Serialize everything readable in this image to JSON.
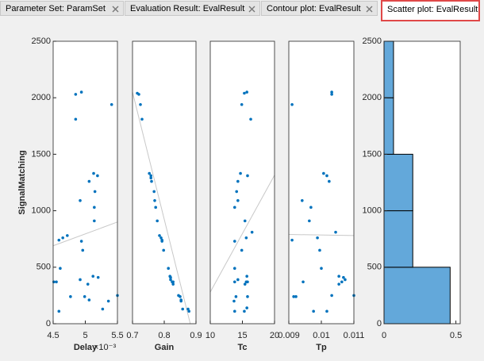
{
  "tabs": [
    "Parameter Set:  ParamSet",
    "Evaluation Result:  EvalResult",
    "Contour plot:  EvalResult",
    "Scatter plot:  EvalResult"
  ],
  "chart_data": [
    {
      "type": "scatter",
      "xlabel": "Delay",
      "x_multiplier": "×10⁻³",
      "ylabel": "SignalMatching",
      "color": "#0072bd",
      "x": [
        4.85,
        4.94,
        4.85,
        5.41,
        5.13,
        5.19,
        5.06,
        5.15,
        4.92,
        5.14,
        5.14,
        4.72,
        4.65,
        4.59,
        4.94,
        4.96,
        4.51,
        4.55,
        4.61,
        4.92,
        5.12,
        5.2,
        5.04,
        4.77,
        4.99,
        5.36,
        5.27,
        5.5,
        4.59,
        5.06
      ],
      "y": [
        2030,
        2050,
        1810,
        1940,
        1330,
        1310,
        1260,
        1170,
        1090,
        1030,
        910,
        780,
        760,
        740,
        730,
        650,
        370,
        370,
        490,
        390,
        420,
        410,
        350,
        240,
        240,
        200,
        130,
        250,
        110,
        210
      ],
      "fit_line": {
        "x": [
          4.5,
          5.5
        ],
        "y": [
          690,
          900
        ],
        "color": "#c8c8c8"
      },
      "xlim": [
        4.5,
        5.5
      ],
      "xticks": [
        4.5,
        5,
        5.5
      ],
      "ylim": [
        0,
        2500
      ],
      "yticks": [
        0,
        500,
        1000,
        1500,
        2000,
        2500
      ]
    },
    {
      "type": "scatter",
      "xlabel": "Gain",
      "color": "#0072bd",
      "x": [
        0.715,
        0.72,
        0.725,
        0.73,
        0.753,
        0.758,
        0.758,
        0.76,
        0.768,
        0.77,
        0.773,
        0.778,
        0.785,
        0.79,
        0.793,
        0.793,
        0.798,
        0.813,
        0.818,
        0.82,
        0.82,
        0.825,
        0.828,
        0.828,
        0.845,
        0.85,
        0.853,
        0.853,
        0.858,
        0.875,
        0.878
      ],
      "y": [
        2040,
        2030,
        1940,
        1810,
        1330,
        1310,
        1290,
        1260,
        1170,
        1090,
        1030,
        910,
        780,
        760,
        740,
        730,
        650,
        490,
        420,
        410,
        390,
        370,
        370,
        350,
        250,
        240,
        210,
        200,
        130,
        130,
        110
      ],
      "fit_line": {
        "x": [
          0.7,
          0.882
        ],
        "y": [
          2050,
          0
        ],
        "color": "#c8c8c8"
      },
      "xlim": [
        0.7,
        0.9
      ],
      "xticks": [
        0.7,
        0.8,
        0.9
      ],
      "ylim": [
        0,
        2500
      ]
    },
    {
      "type": "scatter",
      "xlabel": "Tc",
      "color": "#0072bd",
      "x": [
        15.3,
        15.7,
        14.9,
        16.3,
        14.7,
        15.8,
        14.3,
        14.1,
        14.3,
        13.8,
        15.4,
        16.5,
        15.6,
        13.8,
        14.9,
        13.8,
        13.8,
        15.6,
        15.8,
        15.7,
        14.3,
        15.4,
        14.0,
        15.8,
        13.7,
        15.7,
        13.8,
        15.3
      ],
      "y": [
        2040,
        2050,
        1940,
        1810,
        1330,
        1310,
        1260,
        1170,
        1090,
        1030,
        910,
        810,
        760,
        730,
        650,
        490,
        370,
        370,
        370,
        420,
        390,
        350,
        240,
        240,
        200,
        140,
        110,
        110
      ],
      "fit_line": {
        "x": [
          10,
          20
        ],
        "y": [
          280,
          1315
        ],
        "color": "#c8c8c8"
      },
      "xlim": [
        10,
        20
      ],
      "xticks": [
        10,
        15,
        20
      ],
      "ylim": [
        0,
        2500
      ]
    },
    {
      "type": "scatter",
      "xlabel": "Tp",
      "color": "#0072bd",
      "x": [
        0.0091,
        0.01032,
        0.01032,
        0.01007,
        0.01017,
        0.01024,
        0.00941,
        0.00968,
        0.00963,
        0.01044,
        0.0091,
        0.00988,
        0.00995,
        0.00944,
        0.01,
        0.01054,
        0.01063,
        0.01073,
        0.01054,
        0.01032,
        0.00915,
        0.00922,
        0.01017,
        0.00976,
        0.011,
        0.01068
      ],
      "y": [
        1940,
        2050,
        2030,
        1330,
        1310,
        1260,
        1090,
        1030,
        910,
        810,
        740,
        760,
        650,
        370,
        490,
        420,
        370,
        390,
        350,
        250,
        240,
        240,
        110,
        110,
        250,
        410
      ],
      "fit_line": {
        "x": [
          0.009,
          0.011
        ],
        "y": [
          790,
          780
        ],
        "color": "#c8c8c8"
      },
      "xlim": [
        0.009,
        0.011
      ],
      "xticks": [
        0.009,
        0.01,
        0.011
      ],
      "ylim": [
        0,
        2500
      ]
    },
    {
      "type": "histogram",
      "orientation": "horizontal",
      "color": "#63a8da",
      "bins": [
        0,
        500,
        1000,
        1500,
        2000,
        2500
      ],
      "values": [
        0.46,
        0.2,
        0.2,
        0.066,
        0.066
      ],
      "xlim": [
        0,
        0.53
      ],
      "xticks": [
        0,
        0.5
      ],
      "ylim": [
        0,
        2500
      ],
      "yticks": [
        0,
        500,
        1000,
        1500,
        2000,
        2500
      ]
    }
  ]
}
